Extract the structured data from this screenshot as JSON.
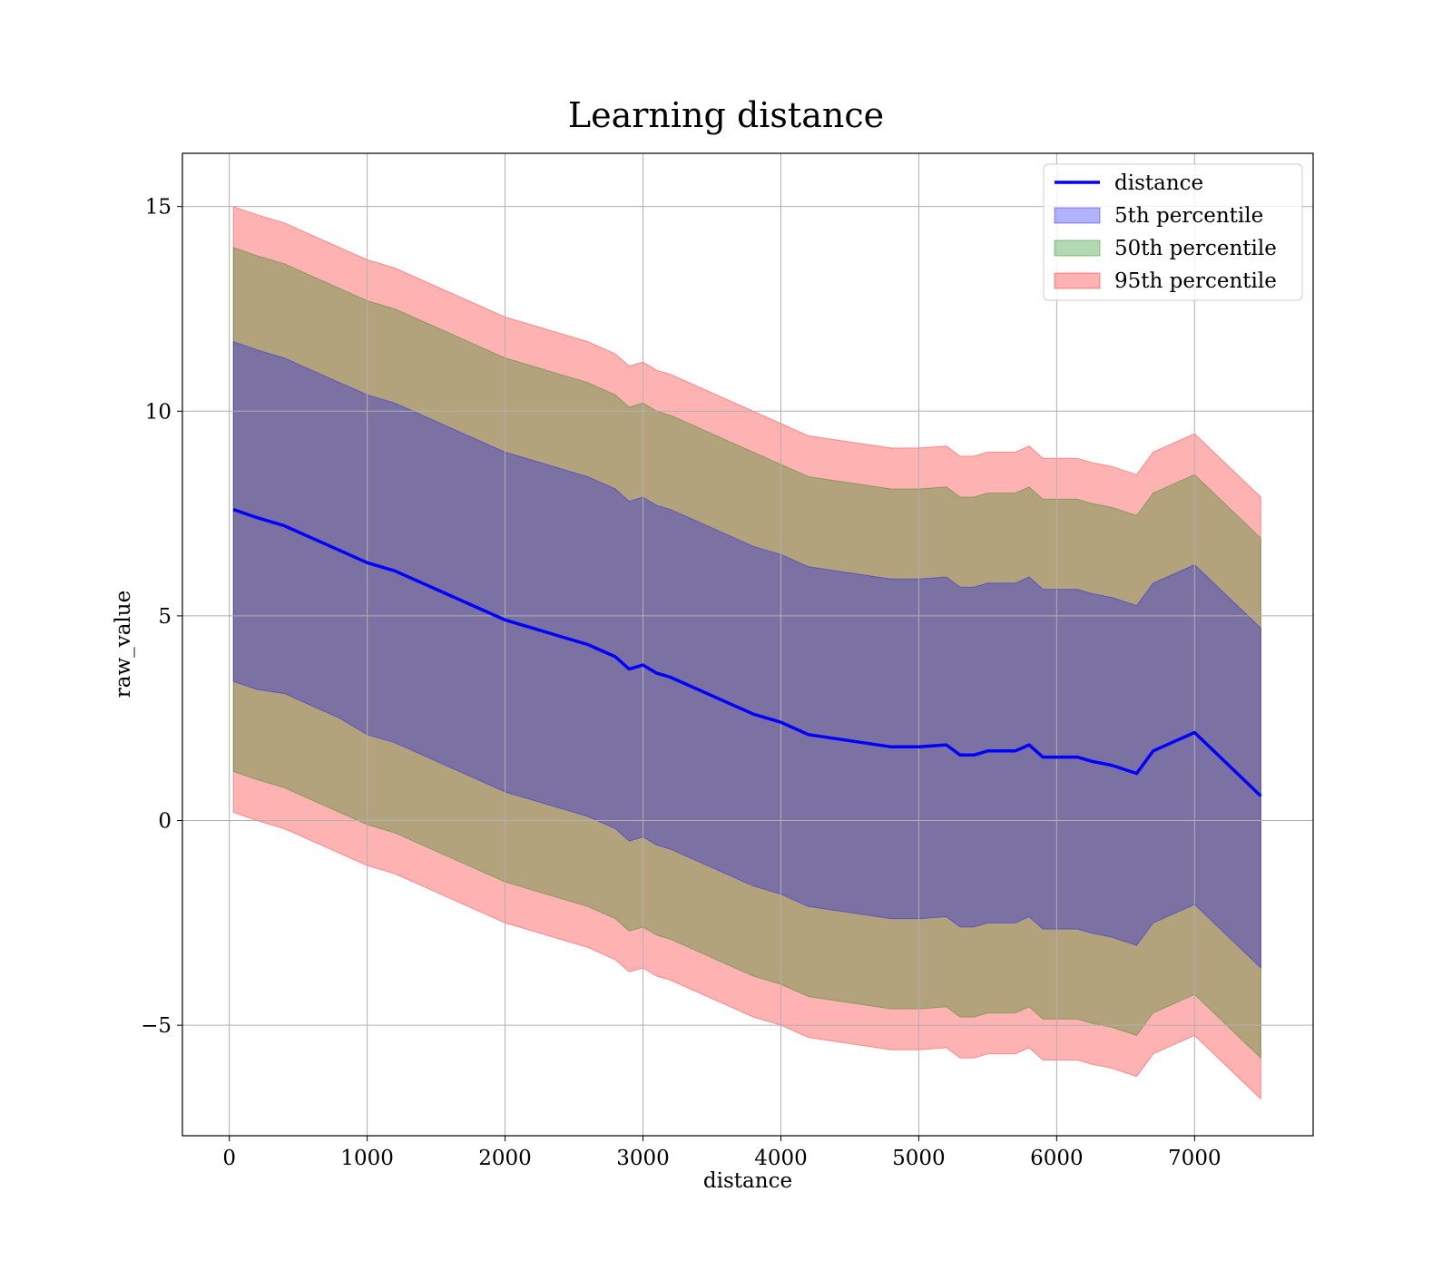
{
  "chart_data": {
    "type": "area",
    "title": "Learning distance",
    "xlabel": "distance",
    "ylabel": "raw_value",
    "xlim": [
      -340,
      7860
    ],
    "ylim": [
      -7.7,
      16.3
    ],
    "xticks": [
      0,
      1000,
      2000,
      3000,
      4000,
      5000,
      6000,
      7000
    ],
    "yticks": [
      -5,
      0,
      5,
      10,
      15
    ],
    "ytick_labels": [
      "−5",
      "0",
      "5",
      "10",
      "15"
    ],
    "grid": true,
    "legend_position": "top-right",
    "legend": [
      "distance",
      "5th percentile",
      "50th percentile",
      "95th percentile"
    ],
    "colors": {
      "distance": "#0000ff",
      "p5": "#0000ff",
      "p50": "#008000",
      "p95": "#ff0000"
    },
    "x": [
      30,
      200,
      400,
      600,
      800,
      1000,
      1200,
      1400,
      1600,
      1800,
      2000,
      2200,
      2400,
      2600,
      2800,
      2900,
      3000,
      3100,
      3200,
      3400,
      3600,
      3800,
      4000,
      4200,
      4400,
      4600,
      4800,
      5000,
      5200,
      5300,
      5400,
      5500,
      5600,
      5700,
      5800,
      5900,
      6000,
      6150,
      6250,
      6400,
      6580,
      6700,
      7000,
      7480
    ],
    "series": [
      {
        "name": "distance",
        "type": "line",
        "values": [
          7.6,
          7.4,
          7.2,
          6.9,
          6.6,
          6.3,
          6.1,
          5.8,
          5.5,
          5.2,
          4.9,
          4.7,
          4.5,
          4.3,
          4.0,
          3.7,
          3.8,
          3.6,
          3.5,
          3.2,
          2.9,
          2.6,
          2.4,
          2.1,
          2.0,
          1.9,
          1.8,
          1.8,
          1.85,
          1.6,
          1.6,
          1.7,
          1.7,
          1.7,
          1.85,
          1.55,
          1.55,
          1.55,
          1.45,
          1.35,
          1.15,
          1.7,
          2.15,
          0.6
        ]
      },
      {
        "name": "5th percentile",
        "lower": [
          3.4,
          3.2,
          3.1,
          2.8,
          2.5,
          2.1,
          1.9,
          1.6,
          1.3,
          1.0,
          0.7,
          0.5,
          0.3,
          0.1,
          -0.2,
          -0.5,
          -0.4,
          -0.6,
          -0.7,
          -1.0,
          -1.3,
          -1.6,
          -1.8,
          -2.1,
          -2.2,
          -2.3,
          -2.4,
          -2.4,
          -2.35,
          -2.6,
          -2.6,
          -2.5,
          -2.5,
          -2.5,
          -2.35,
          -2.65,
          -2.65,
          -2.65,
          -2.75,
          -2.85,
          -3.05,
          -2.5,
          -2.05,
          -3.6
        ],
        "upper": [
          11.7,
          11.5,
          11.3,
          11.0,
          10.7,
          10.4,
          10.2,
          9.9,
          9.6,
          9.3,
          9.0,
          8.8,
          8.6,
          8.4,
          8.1,
          7.8,
          7.9,
          7.7,
          7.6,
          7.3,
          7.0,
          6.7,
          6.5,
          6.2,
          6.1,
          6.0,
          5.9,
          5.9,
          5.95,
          5.7,
          5.7,
          5.8,
          5.8,
          5.8,
          5.95,
          5.65,
          5.65,
          5.65,
          5.55,
          5.45,
          5.25,
          5.8,
          6.25,
          4.7
        ]
      },
      {
        "name": "50th percentile",
        "lower": [
          1.2,
          1.0,
          0.8,
          0.5,
          0.2,
          -0.1,
          -0.3,
          -0.6,
          -0.9,
          -1.2,
          -1.5,
          -1.7,
          -1.9,
          -2.1,
          -2.4,
          -2.7,
          -2.6,
          -2.8,
          -2.9,
          -3.2,
          -3.5,
          -3.8,
          -4.0,
          -4.3,
          -4.4,
          -4.5,
          -4.6,
          -4.6,
          -4.55,
          -4.8,
          -4.8,
          -4.7,
          -4.7,
          -4.7,
          -4.55,
          -4.85,
          -4.85,
          -4.85,
          -4.95,
          -5.05,
          -5.25,
          -4.7,
          -4.25,
          -5.8
        ],
        "upper": [
          14.0,
          13.8,
          13.6,
          13.3,
          13.0,
          12.7,
          12.5,
          12.2,
          11.9,
          11.6,
          11.3,
          11.1,
          10.9,
          10.7,
          10.4,
          10.1,
          10.2,
          10.0,
          9.9,
          9.6,
          9.3,
          9.0,
          8.7,
          8.4,
          8.3,
          8.2,
          8.1,
          8.1,
          8.15,
          7.9,
          7.9,
          8.0,
          8.0,
          8.0,
          8.15,
          7.85,
          7.85,
          7.85,
          7.75,
          7.65,
          7.45,
          8.0,
          8.45,
          6.9
        ]
      },
      {
        "name": "95th percentile",
        "lower": [
          0.2,
          0.0,
          -0.2,
          -0.5,
          -0.8,
          -1.1,
          -1.3,
          -1.6,
          -1.9,
          -2.2,
          -2.5,
          -2.7,
          -2.9,
          -3.1,
          -3.4,
          -3.7,
          -3.6,
          -3.8,
          -3.9,
          -4.2,
          -4.5,
          -4.8,
          -5.0,
          -5.3,
          -5.4,
          -5.5,
          -5.6,
          -5.6,
          -5.55,
          -5.8,
          -5.8,
          -5.7,
          -5.7,
          -5.7,
          -5.55,
          -5.85,
          -5.85,
          -5.85,
          -5.95,
          -6.05,
          -6.25,
          -5.7,
          -5.25,
          -6.8
        ],
        "upper": [
          15.0,
          14.8,
          14.6,
          14.3,
          14.0,
          13.7,
          13.5,
          13.2,
          12.9,
          12.6,
          12.3,
          12.1,
          11.9,
          11.7,
          11.4,
          11.1,
          11.2,
          11.0,
          10.9,
          10.6,
          10.3,
          10.0,
          9.7,
          9.4,
          9.3,
          9.2,
          9.1,
          9.1,
          9.15,
          8.9,
          8.9,
          9.0,
          9.0,
          9.0,
          9.15,
          8.85,
          8.85,
          8.85,
          8.75,
          8.65,
          8.45,
          9.0,
          9.45,
          7.9
        ]
      }
    ]
  }
}
